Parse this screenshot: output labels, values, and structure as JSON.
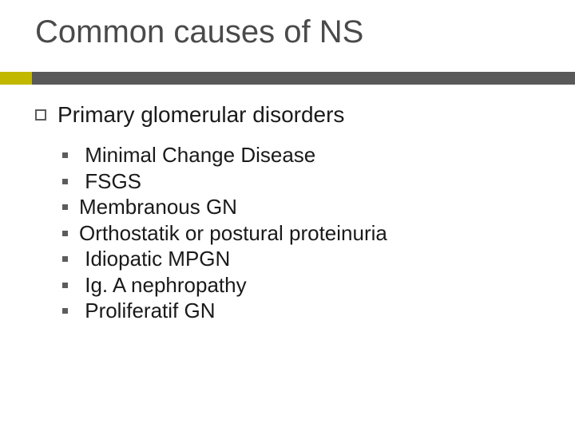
{
  "slide": {
    "title": "Common causes of NS",
    "accent_color": "#c2b800",
    "bar_color": "#595959",
    "bg_color": "#ffffff",
    "title_color": "#4a4a4a",
    "text_color": "#1a1a1a",
    "title_fontsize": 40,
    "lvl1_fontsize": 28,
    "lvl2_fontsize": 26
  },
  "lvl1": {
    "text": "Primary glomerular disorders"
  },
  "lvl2": [
    {
      "text": " Minimal Change Disease"
    },
    {
      "text": " FSGS"
    },
    {
      "text": "Membranous GN"
    },
    {
      "text": "Orthostatik or postural proteinuria"
    },
    {
      "text": " Idiopatic MPGN"
    },
    {
      "text": " Ig. A nephropathy"
    },
    {
      "text": " Proliferatif GN"
    }
  ]
}
